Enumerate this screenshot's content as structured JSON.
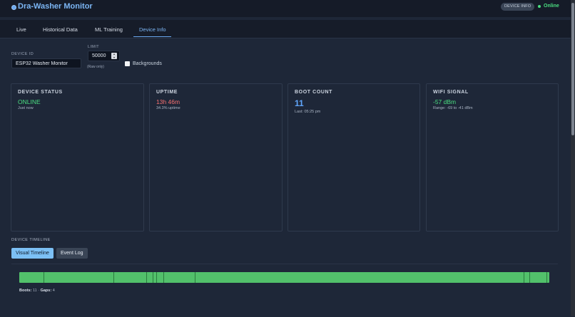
{
  "app": {
    "title": "Dra-Washer Monitor",
    "badge": "DEVICE INFO",
    "status": "Online"
  },
  "tabs": [
    {
      "label": "Live"
    },
    {
      "label": "Historical Data"
    },
    {
      "label": "ML Training"
    },
    {
      "label": "Device Info",
      "active": true
    }
  ],
  "controls": {
    "device_id_label": "DEVICE ID",
    "device_id_value": "ESP32 Washer Monitor",
    "limit_label": "LIMIT",
    "limit_value": "50000",
    "limit_hint": "(Raw only)",
    "backgrounds_label": "Backgrounds",
    "backgrounds_checked": false
  },
  "cards": {
    "status": {
      "title": "DEVICE STATUS",
      "value": "ONLINE",
      "sub": "Just now",
      "color": "#4ade80"
    },
    "uptime": {
      "title": "UPTIME",
      "value": "13h 46m",
      "sub": "34.3% uptime",
      "color": "#f87171"
    },
    "boot": {
      "title": "BOOT COUNT",
      "value": "11",
      "sub": "Last: 05:25 pm",
      "color": "#60a5fa"
    },
    "wifi": {
      "title": "WIFI SIGNAL",
      "value": "-57 dBm",
      "sub": "Range: -69 to -41 dBm",
      "color": "#4ade80"
    }
  },
  "timeline": {
    "heading": "DEVICE TIMELINE",
    "btn_visual": "Visual Timeline",
    "btn_events": "Event Log",
    "boots_label": "Boots:",
    "boots_value": "11",
    "separator": "·",
    "gaps_label": "Gaps:",
    "gaps_value": "4",
    "bar_color": "#52c16b",
    "marks": [
      0.046,
      0.177,
      0.24,
      0.252,
      0.258,
      0.272,
      0.331,
      0.951,
      0.962,
      0.994
    ]
  }
}
